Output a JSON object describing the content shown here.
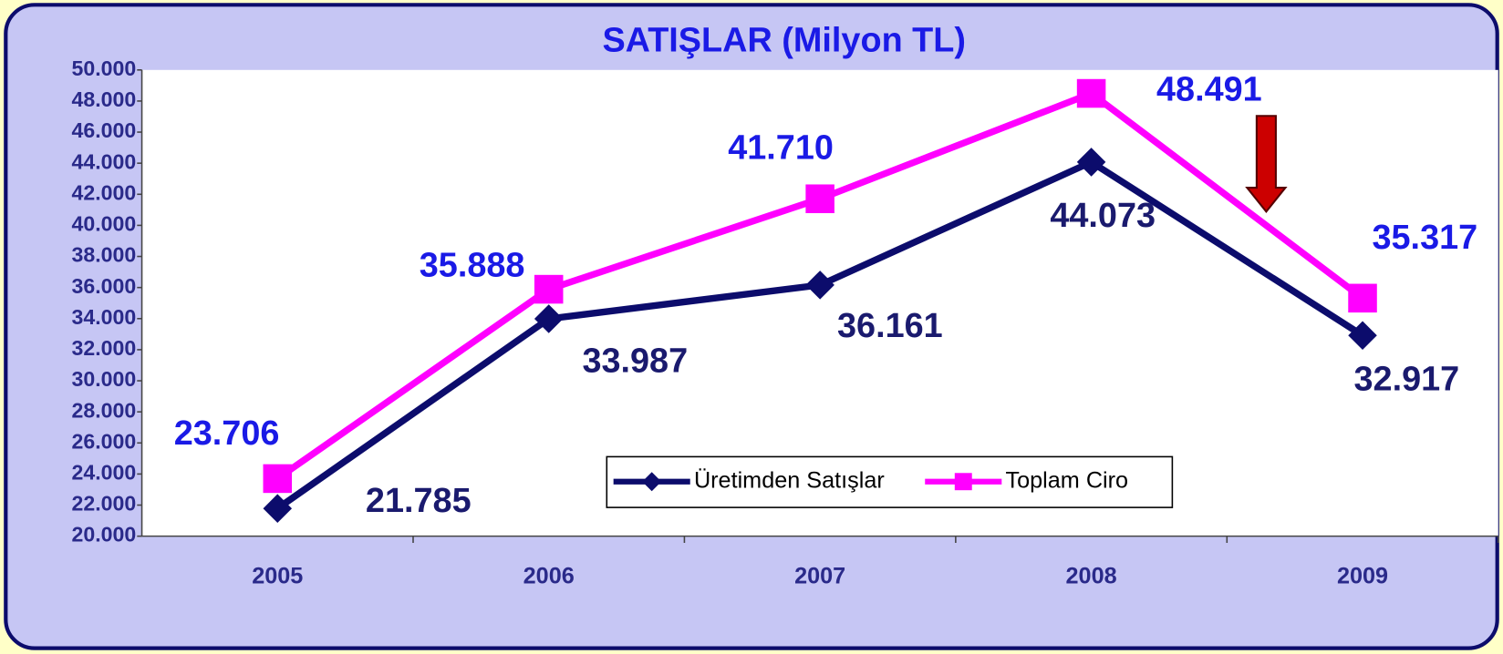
{
  "chart_data": {
    "type": "line",
    "title": "SATIŞLAR (Milyon TL)",
    "categories": [
      "2005",
      "2006",
      "2007",
      "2008",
      "2009"
    ],
    "series": [
      {
        "name": "Üretimden Satışlar",
        "color": "#0c0c6c",
        "marker": "diamond",
        "values": [
          21785,
          33987,
          36161,
          44073,
          32917
        ],
        "value_labels": [
          "21.785",
          "33.987",
          "36.161",
          "44.073",
          "32.917"
        ]
      },
      {
        "name": "Toplam Ciro",
        "color": "#ff00ff",
        "marker": "square",
        "values": [
          23706,
          35888,
          41710,
          48491,
          35317
        ],
        "value_labels": [
          "23.706",
          "35.888",
          "41.710",
          "48.491",
          "35.317"
        ]
      }
    ],
    "ylim": [
      20000,
      50000
    ],
    "yticks": [
      {
        "value": 20000,
        "label": "20.000"
      },
      {
        "value": 22000,
        "label": "22.000"
      },
      {
        "value": 24000,
        "label": "24.000"
      },
      {
        "value": 26000,
        "label": "26.000"
      },
      {
        "value": 28000,
        "label": "28.000"
      },
      {
        "value": 30000,
        "label": "30.000"
      },
      {
        "value": 32000,
        "label": "32.000"
      },
      {
        "value": 34000,
        "label": "34.000"
      },
      {
        "value": 36000,
        "label": "36.000"
      },
      {
        "value": 38000,
        "label": "38.000"
      },
      {
        "value": 40000,
        "label": "40.000"
      },
      {
        "value": 42000,
        "label": "42.000"
      },
      {
        "value": 44000,
        "label": "44.000"
      },
      {
        "value": 46000,
        "label": "46.000"
      },
      {
        "value": 48000,
        "label": "48.000"
      },
      {
        "value": 50000,
        "label": "50.000"
      }
    ],
    "grid": false,
    "legend": "bottom-center"
  }
}
